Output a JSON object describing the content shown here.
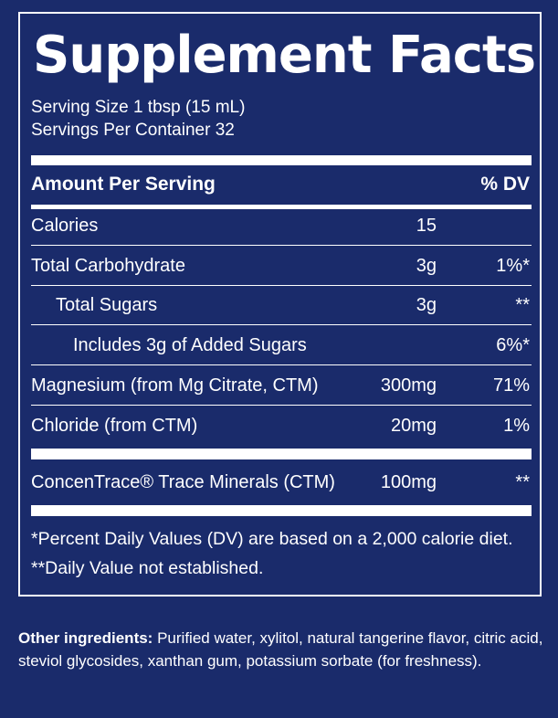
{
  "title": "Supplement Facts",
  "serving_size": "Serving Size 1 tbsp (15 mL)",
  "servings_per_container": "Servings Per Container 32",
  "header": {
    "amount_label": "Amount Per Serving",
    "dv_label": "% DV"
  },
  "rows": [
    {
      "name": "Calories",
      "amount": "15",
      "dv": ""
    },
    {
      "name": "Total Carbohydrate",
      "amount": "3g",
      "dv": "1%*"
    },
    {
      "name": "Total Sugars",
      "amount": "3g",
      "dv": "**"
    },
    {
      "name": "Includes 3g of Added Sugars",
      "amount": "",
      "dv": "6%*"
    },
    {
      "name": "Magnesium (from Mg Citrate, CTM)",
      "amount": "300mg",
      "dv": "71%"
    },
    {
      "name": "Chloride (from CTM)",
      "amount": "20mg",
      "dv": "1%"
    },
    {
      "name": "ConcenTrace® Trace Minerals (CTM)",
      "amount": "100mg",
      "dv": "**"
    }
  ],
  "footnotes": [
    "*Percent Daily Values (DV) are based on a 2,000 calorie diet.",
    "**Daily Value not established."
  ],
  "other_ingredients": {
    "label": "Other ingredients:",
    "text": " Purified water, xylitol, natural tangerine flavor, citric acid, steviol glycosides, xanthan gum, potassium sorbate (for freshness)."
  },
  "colors": {
    "background": "#1a2b6b",
    "foreground": "#ffffff"
  }
}
